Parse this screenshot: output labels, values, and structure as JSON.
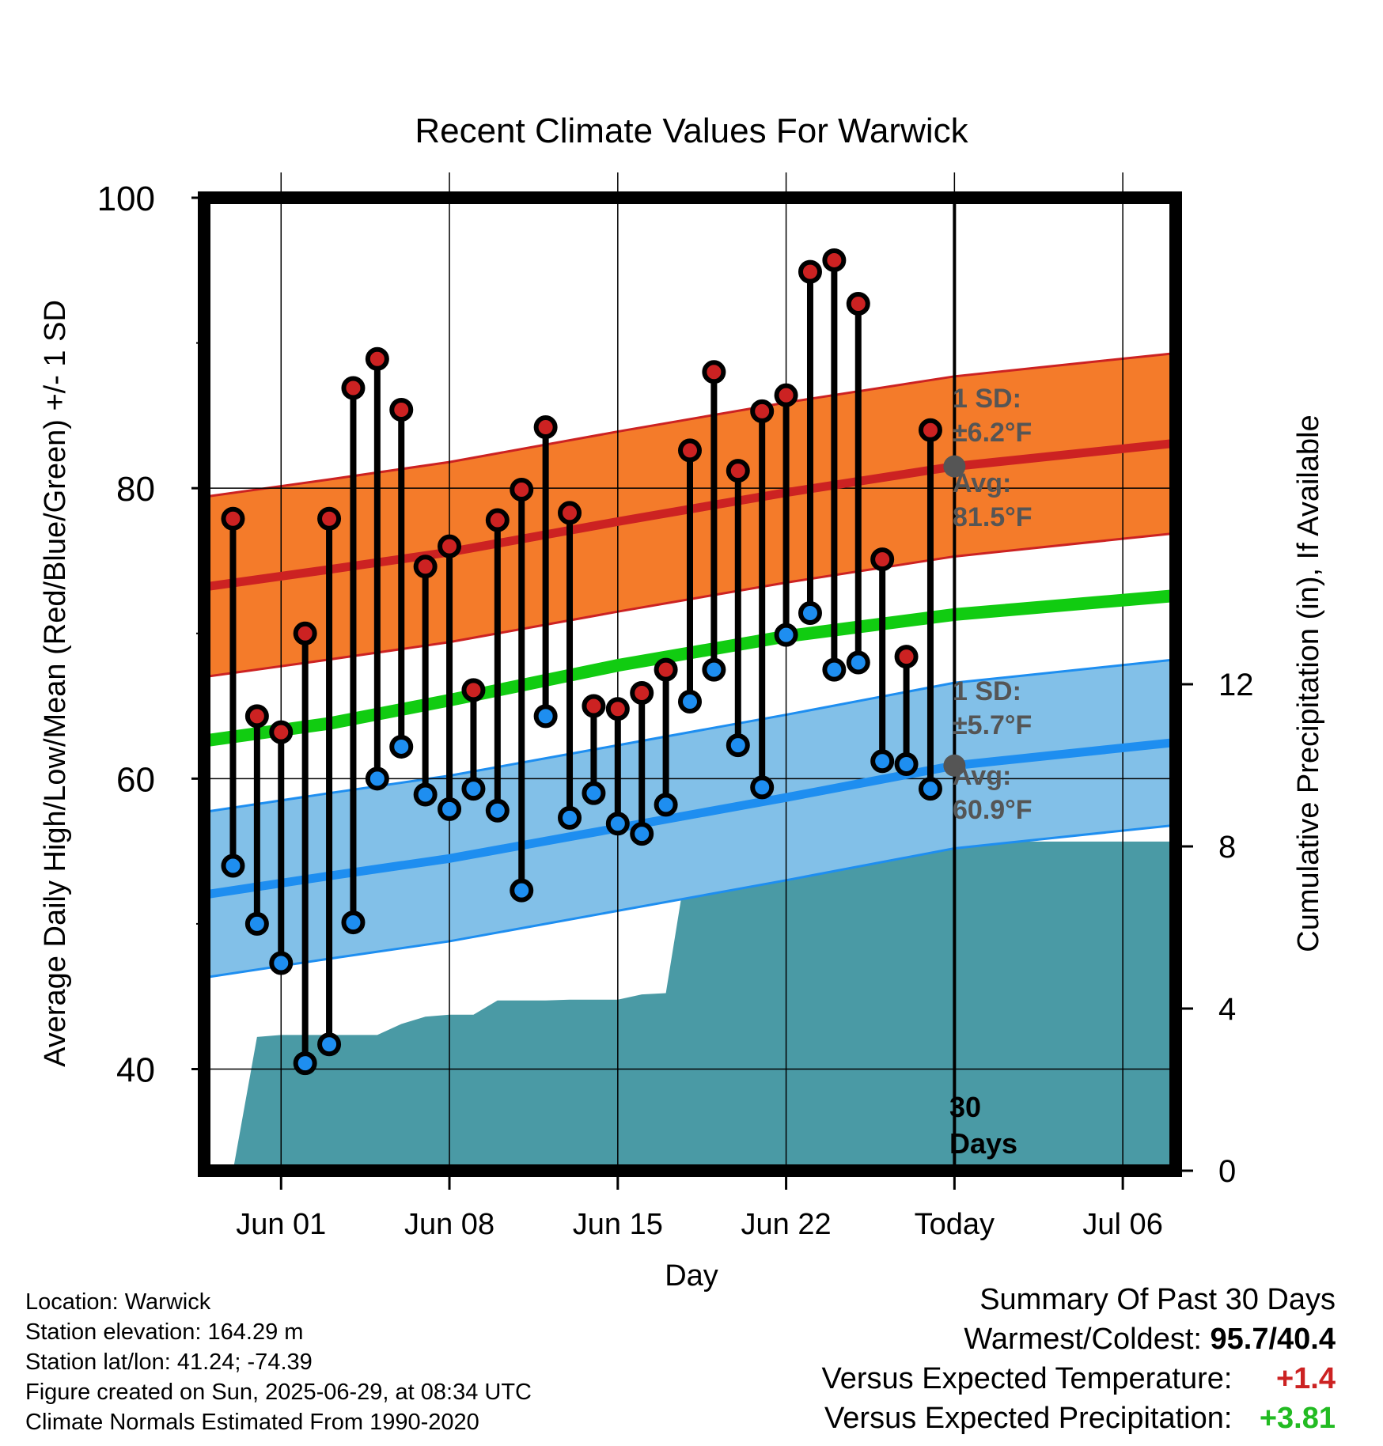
{
  "chart_data": {
    "type": "line",
    "title": "Recent Climate Values For Warwick",
    "xlabel": "Day",
    "ylabel": "Average Daily High/Low/Mean (Red/Blue/Green) +/- 1 SD",
    "y2label": "Cumulative Precipitation (in), If Available",
    "ylim": [
      33,
      100
    ],
    "y2lim": [
      0,
      24
    ],
    "yticks": [
      40,
      60,
      80,
      100
    ],
    "y2ticks": [
      0,
      4,
      8,
      12
    ],
    "xlim": [
      -3.2,
      37.2
    ],
    "xticks": [
      {
        "day": 0,
        "label": "Jun 01"
      },
      {
        "day": 7,
        "label": "Jun 08"
      },
      {
        "day": 14,
        "label": "Jun 15"
      },
      {
        "day": 21,
        "label": "Jun 22"
      },
      {
        "day": 28,
        "label": "Today"
      },
      {
        "day": 35,
        "label": "Jul 06"
      }
    ],
    "grid": true,
    "days": [
      -2,
      -1,
      0,
      1,
      2,
      3,
      4,
      5,
      6,
      7,
      8,
      9,
      10,
      11,
      12,
      13,
      14,
      15,
      16,
      17,
      18,
      19,
      20,
      21,
      22,
      23,
      24,
      25,
      26,
      27
    ],
    "highs": [
      77.9,
      64.3,
      63.2,
      70.0,
      77.9,
      86.9,
      88.9,
      85.4,
      74.6,
      76.0,
      66.1,
      77.8,
      79.9,
      84.2,
      78.3,
      65.0,
      64.8,
      65.9,
      67.5,
      82.6,
      88.0,
      81.2,
      85.3,
      86.4,
      94.9,
      95.7,
      92.7,
      75.1,
      68.4,
      84.0
    ],
    "lows": [
      54.0,
      50.0,
      47.3,
      40.4,
      41.7,
      50.1,
      60.0,
      62.2,
      58.9,
      57.9,
      59.3,
      57.8,
      52.3,
      64.3,
      57.3,
      59.0,
      56.9,
      56.2,
      58.2,
      65.3,
      67.5,
      62.3,
      59.4,
      69.9,
      71.4,
      67.5,
      68.0,
      61.2,
      61.0,
      59.3
    ],
    "normals": {
      "days": [
        -3.2,
        2,
        7,
        14,
        21,
        28,
        37.2
      ],
      "high_mean": [
        73.2,
        74.4,
        75.6,
        77.7,
        79.7,
        81.5,
        83.1
      ],
      "low_mean": [
        52.0,
        53.3,
        54.5,
        56.6,
        58.7,
        60.9,
        62.5
      ],
      "overall_mean": [
        62.6,
        63.8,
        65.4,
        67.8,
        69.8,
        71.3,
        72.6
      ],
      "high_sd": 6.2,
      "low_sd": 5.7
    },
    "precip": {
      "days": [
        -2,
        -1,
        0,
        1,
        2,
        3,
        4,
        5,
        6,
        7,
        8,
        9,
        10,
        11,
        12,
        13,
        14,
        15,
        16,
        17,
        18,
        19,
        20,
        21,
        22,
        23,
        24,
        25,
        26,
        27,
        28,
        37
      ],
      "values": [
        0.0,
        3.3,
        3.35,
        3.35,
        3.35,
        3.35,
        3.35,
        3.62,
        3.8,
        3.85,
        3.85,
        4.2,
        4.2,
        4.2,
        4.22,
        4.22,
        4.22,
        4.35,
        4.38,
        8.05,
        8.07,
        8.07,
        8.07,
        8.1,
        8.1,
        8.1,
        8.12,
        8.12,
        8.12,
        8.12,
        8.12,
        8.12
      ]
    },
    "annotations": {
      "high_sd_label": "1 SD:",
      "high_sd_value": "±6.2°F",
      "high_avg_label": "Avg:",
      "high_avg_value": "81.5°F",
      "low_sd_label": "1 SD:",
      "low_sd_value": "±5.7°F",
      "low_avg_label": "Avg:",
      "low_avg_value": "60.9°F",
      "window_count": "30",
      "window_unit": "Days"
    },
    "colors": {
      "high_band": "#f47b2a",
      "high_line": "#cc2222",
      "low_band": "#82c0e8",
      "low_line": "#1e8ef0",
      "mean_line": "#11cc11",
      "precip": "#4a9aa5",
      "high_dot": "#cc2222",
      "low_dot": "#1e8ef0",
      "today_dot": "#555555"
    }
  },
  "info": {
    "location": "Location: Warwick",
    "elevation": "Station elevation: 164.29 m",
    "latlon": "Station lat/lon: 41.24; -74.39",
    "created": "Figure created on Sun, 2025-06-29, at 08:34 UTC",
    "normals": "Climate Normals Estimated From 1990-2020"
  },
  "summary": {
    "title": "Summary Of Past 30 Days",
    "warmest_label": "Warmest/Coldest:",
    "warmest_value": "95.7/40.4",
    "temp_label": "Versus Expected Temperature:",
    "temp_value": "+1.4",
    "temp_color": "#cc2222",
    "precip_label": "Versus Expected Precipitation:",
    "precip_value": "+3.81",
    "precip_color": "#22bb22"
  }
}
